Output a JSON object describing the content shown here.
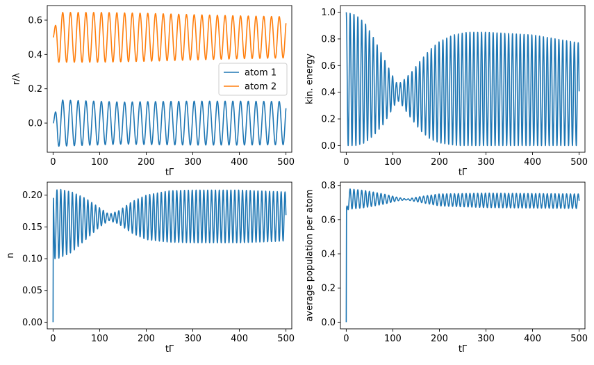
{
  "figure": {
    "layout": "2x2 grid"
  },
  "chart_data": [
    {
      "id": "positions",
      "type": "line",
      "xlabel": "tΓ",
      "ylabel": "r/λ",
      "xlim": [
        -12.5,
        512.5
      ],
      "ylim": [
        -0.17,
        0.685
      ],
      "xticks": [
        0,
        100,
        200,
        300,
        400,
        500
      ],
      "xtick_labels": [
        "0",
        "100",
        "200",
        "300",
        "400",
        "500"
      ],
      "yticks": [
        0.0,
        0.2,
        0.4,
        0.6
      ],
      "ytick_labels": [
        "0.0",
        "0.2",
        "0.4",
        "0.6"
      ],
      "legend": {
        "placement": "center-right",
        "entries": [
          "atom 1",
          "atom 2"
        ]
      },
      "series": [
        {
          "name": "atom 1",
          "color": "#1f77b4",
          "model": "oscillation",
          "period": 16.6,
          "offset": 0.0,
          "start_value": 0.0,
          "envelope_points": [
            [
              0,
              0.0
            ],
            [
              10,
              0.135
            ],
            [
              100,
              0.127
            ],
            [
              150,
              0.122
            ],
            [
              200,
              0.125
            ],
            [
              300,
              0.128
            ],
            [
              400,
              0.128
            ],
            [
              500,
              0.126
            ]
          ]
        },
        {
          "name": "atom 2",
          "color": "#ff7f0e",
          "model": "oscillation",
          "period": 16.6,
          "offset": 0.5,
          "start_value": 0.5,
          "envelope_points": [
            [
              0,
              0.0
            ],
            [
              10,
              0.145
            ],
            [
              100,
              0.145
            ],
            [
              200,
              0.14
            ],
            [
              300,
              0.132
            ],
            [
              400,
              0.125
            ],
            [
              500,
              0.12
            ]
          ]
        }
      ]
    },
    {
      "id": "kinetic-energy",
      "type": "line",
      "xlabel": "tΓ",
      "ylabel": "kin. energy",
      "xlim": [
        -12.5,
        512.5
      ],
      "ylim": [
        -0.05,
        1.05
      ],
      "xticks": [
        0,
        100,
        200,
        300,
        400,
        500
      ],
      "xtick_labels": [
        "0",
        "100",
        "200",
        "300",
        "400",
        "500"
      ],
      "yticks": [
        0.0,
        0.2,
        0.4,
        0.6,
        0.8,
        1.0
      ],
      "ytick_labels": [
        "0.0",
        "0.2",
        "0.4",
        "0.6",
        "0.8",
        "1.0"
      ],
      "series": [
        {
          "name": "kinetic energy",
          "color": "#1f77b4",
          "model": "band",
          "period": 8.3,
          "upper_points": [
            [
              0,
              1.0
            ],
            [
              20,
              0.98
            ],
            [
              40,
              0.92
            ],
            [
              60,
              0.8
            ],
            [
              80,
              0.66
            ],
            [
              100,
              0.52
            ],
            [
              110,
              0.46
            ],
            [
              120,
              0.48
            ],
            [
              140,
              0.55
            ],
            [
              160,
              0.64
            ],
            [
              180,
              0.72
            ],
            [
              200,
              0.78
            ],
            [
              230,
              0.83
            ],
            [
              260,
              0.85
            ],
            [
              300,
              0.85
            ],
            [
              350,
              0.84
            ],
            [
              400,
              0.83
            ],
            [
              450,
              0.8
            ],
            [
              500,
              0.77
            ]
          ],
          "lower_points": [
            [
              0,
              0.0
            ],
            [
              20,
              0.0
            ],
            [
              40,
              0.02
            ],
            [
              60,
              0.08
            ],
            [
              80,
              0.16
            ],
            [
              100,
              0.28
            ],
            [
              110,
              0.34
            ],
            [
              120,
              0.3
            ],
            [
              140,
              0.2
            ],
            [
              160,
              0.11
            ],
            [
              180,
              0.05
            ],
            [
              200,
              0.02
            ],
            [
              240,
              0.0
            ],
            [
              500,
              0.0
            ]
          ]
        }
      ]
    },
    {
      "id": "photon-number",
      "type": "line",
      "xlabel": "tΓ",
      "ylabel": "n",
      "xlim": [
        -12.5,
        512.5
      ],
      "ylim": [
        -0.0105,
        0.2205
      ],
      "xticks": [
        0,
        100,
        200,
        300,
        400,
        500
      ],
      "xtick_labels": [
        "0",
        "100",
        "200",
        "300",
        "400",
        "500"
      ],
      "yticks": [
        0.0,
        0.05,
        0.1,
        0.15,
        0.2
      ],
      "ytick_labels": [
        "0.00",
        "0.05",
        "0.10",
        "0.15",
        "0.20"
      ],
      "series": [
        {
          "name": "n",
          "color": "#1f77b4",
          "model": "band",
          "period": 8.3,
          "initial_rise": 0.0,
          "upper_points": [
            [
              0,
              0.2
            ],
            [
              10,
              0.21
            ],
            [
              40,
              0.205
            ],
            [
              70,
              0.195
            ],
            [
              100,
              0.18
            ],
            [
              120,
              0.17
            ],
            [
              140,
              0.175
            ],
            [
              170,
              0.19
            ],
            [
              200,
              0.2
            ],
            [
              250,
              0.207
            ],
            [
              300,
              0.208
            ],
            [
              400,
              0.208
            ],
            [
              500,
              0.205
            ]
          ],
          "lower_points": [
            [
              0,
              0.1
            ],
            [
              10,
              0.1
            ],
            [
              40,
              0.11
            ],
            [
              70,
              0.13
            ],
            [
              100,
              0.15
            ],
            [
              120,
              0.16
            ],
            [
              140,
              0.155
            ],
            [
              170,
              0.14
            ],
            [
              200,
              0.13
            ],
            [
              250,
              0.126
            ],
            [
              300,
              0.125
            ],
            [
              400,
              0.125
            ],
            [
              500,
              0.128
            ]
          ]
        }
      ]
    },
    {
      "id": "population",
      "type": "line",
      "xlabel": "tΓ",
      "ylabel": "average population per atom",
      "xlim": [
        -12.5,
        512.5
      ],
      "ylim": [
        -0.039,
        0.819
      ],
      "xticks": [
        0,
        100,
        200,
        300,
        400,
        500
      ],
      "xtick_labels": [
        "0",
        "100",
        "200",
        "300",
        "400",
        "500"
      ],
      "yticks": [
        0.0,
        0.2,
        0.4,
        0.6,
        0.8
      ],
      "ytick_labels": [
        "0.0",
        "0.2",
        "0.4",
        "0.6",
        "0.8"
      ],
      "series": [
        {
          "name": "average population per atom",
          "color": "#1f77b4",
          "model": "band",
          "period": 8.3,
          "initial_rise": 0.0,
          "upper_points": [
            [
              0,
              0.65
            ],
            [
              5,
              0.78
            ],
            [
              40,
              0.77
            ],
            [
              80,
              0.75
            ],
            [
              110,
              0.73
            ],
            [
              130,
              0.72
            ],
            [
              160,
              0.735
            ],
            [
              200,
              0.75
            ],
            [
              300,
              0.755
            ],
            [
              500,
              0.75
            ]
          ],
          "lower_points": [
            [
              0,
              0.65
            ],
            [
              5,
              0.66
            ],
            [
              40,
              0.67
            ],
            [
              80,
              0.69
            ],
            [
              110,
              0.71
            ],
            [
              130,
              0.715
            ],
            [
              160,
              0.7
            ],
            [
              200,
              0.68
            ],
            [
              300,
              0.67
            ],
            [
              500,
              0.665
            ]
          ]
        }
      ]
    }
  ]
}
